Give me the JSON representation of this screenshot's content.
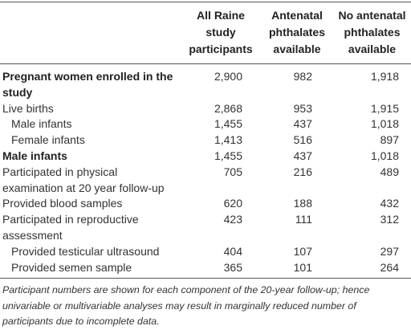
{
  "table": {
    "columns": [
      "",
      "All Raine study participants",
      "Antenatal phthalates available",
      "No antenatal phthalates available"
    ],
    "rows": [
      [
        "Pregnant women enrolled in the study",
        "2,900",
        "982",
        "1,918"
      ],
      [
        "Live births",
        "2,868",
        "953",
        "1,915"
      ],
      [
        "Male infants",
        "1,455",
        "437",
        "1,018"
      ],
      [
        "Female infants",
        "1,413",
        "516",
        "897"
      ],
      [
        "Male infants",
        "1,455",
        "437",
        "1,018"
      ],
      [
        "Participated in physical examination at 20 year follow-up",
        "705",
        "216",
        "489"
      ],
      [
        "Provided blood samples",
        "620",
        "188",
        "432"
      ],
      [
        "Participated in reproductive assessment",
        "423",
        "111",
        "312"
      ],
      [
        "Provided testicular ultrasound",
        "404",
        "107",
        "297"
      ],
      [
        "Provided semen sample",
        "365",
        "101",
        "264"
      ]
    ],
    "footnote": "Participant numbers are shown for each component of the 20-year follow-up; hence univariable or multivariable analyses may result in marginally reduced number of participants due to incomplete data."
  }
}
